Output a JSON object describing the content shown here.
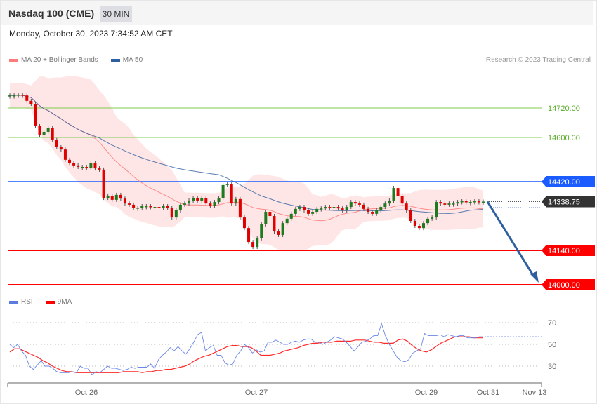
{
  "header": {
    "title": "Nasdaq 100 (CME)",
    "interval": "30 MIN"
  },
  "timestamp": "Monday, October 30, 2023 7:34:52 AM CET",
  "credit": "Research © 2023 Trading Central",
  "legend_main": [
    {
      "label": "MA 20 + Bollinger Bands",
      "color": "#ff7b7b"
    },
    {
      "label": "MA 50",
      "color": "#2f5f9e"
    }
  ],
  "legend_rsi": [
    {
      "label": "RSI",
      "color": "#5b7be0"
    },
    {
      "label": "9MA",
      "color": "#ff0000"
    }
  ],
  "chart_data": [
    {
      "type": "candlestick",
      "price_range": [
        14000,
        14800
      ],
      "levels": [
        {
          "value": 14720,
          "label": "14720.00",
          "color": "#7fcc4e",
          "style": "target"
        },
        {
          "value": 14600,
          "label": "14600.00",
          "color": "#7fcc4e",
          "style": "target"
        },
        {
          "value": 14420,
          "label": "14420.00",
          "color": "#1a5cff",
          "style": "pivot"
        },
        {
          "value": 14338.75,
          "label": "14338.75",
          "color": "#333333",
          "style": "last"
        },
        {
          "value": 14140,
          "label": "14140.00",
          "color": "#ff0000",
          "style": "support"
        },
        {
          "value": 14000,
          "label": "14000.00",
          "color": "#ff0000",
          "style": "support"
        }
      ],
      "forecast_arrow": {
        "from": 14338.75,
        "to": 14000,
        "color": "#2f5f9e"
      },
      "open_first": 14771,
      "closes": [
        14771,
        14771,
        14774,
        14771,
        14749,
        14737,
        14646,
        14611,
        14623,
        14640,
        14589,
        14560,
        14551,
        14509,
        14497,
        14486,
        14480,
        14480,
        14474,
        14497,
        14474,
        14469,
        14354,
        14360,
        14346,
        14366,
        14351,
        14331,
        14326,
        14314,
        14314,
        14320,
        14320,
        14317,
        14317,
        14314,
        14320,
        14314,
        14274,
        14303,
        14326,
        14331,
        14343,
        14354,
        14343,
        14354,
        14331,
        14320,
        14337,
        14354,
        14406,
        14411,
        14331,
        14349,
        14274,
        14231,
        14174,
        14154,
        14189,
        14246,
        14297,
        14280,
        14217,
        14203,
        14251,
        14269,
        14289,
        14309,
        14317,
        14303,
        14289,
        14297,
        14309,
        14311,
        14317,
        14314,
        14317,
        14311,
        14303,
        14317,
        14337,
        14331,
        14326,
        14309,
        14297,
        14289,
        14303,
        14317,
        14331,
        14343,
        14394,
        14360,
        14331,
        14303,
        14260,
        14240,
        14231,
        14251,
        14269,
        14274,
        14337,
        14331,
        14326,
        14331,
        14331,
        14337,
        14340,
        14337,
        14337,
        14340,
        14337,
        14338.75
      ],
      "x_ticks": [
        "Oct 26",
        "Oct 27",
        "Oct 29",
        "Oct 31",
        "Nov 13"
      ]
    },
    {
      "type": "line",
      "y_ticks": [
        70,
        50,
        30
      ],
      "series": [
        {
          "name": "RSI",
          "values": [
            50,
            47,
            50,
            44,
            40,
            30,
            27,
            31,
            35,
            30,
            30,
            28,
            25,
            24,
            24,
            24,
            25,
            24,
            30,
            28,
            28,
            22,
            25,
            24,
            27,
            30,
            28,
            28,
            27,
            26,
            27,
            29,
            28,
            29,
            29,
            29,
            32,
            28,
            36,
            40,
            43,
            47,
            44,
            48,
            44,
            41,
            46,
            52,
            59,
            61,
            44,
            47,
            49,
            40,
            40,
            33,
            31,
            32,
            40,
            44,
            50,
            47,
            42,
            45,
            43,
            44,
            52,
            52,
            54,
            52,
            50,
            50,
            52,
            53,
            52,
            54,
            55,
            55,
            52,
            52,
            50,
            52,
            54,
            57,
            56,
            55,
            52,
            48,
            44,
            48,
            52,
            53,
            55,
            58,
            58,
            69,
            58,
            50,
            44,
            38,
            35,
            34,
            36,
            42,
            44,
            46,
            60,
            58,
            58,
            58,
            59,
            57,
            59,
            58,
            57,
            58,
            58,
            56,
            56,
            56,
            57,
            57
          ]
        },
        {
          "name": "9MA",
          "values": [
            43,
            46,
            46,
            44,
            42,
            40,
            38,
            35,
            33,
            30,
            28,
            26,
            25,
            25,
            24,
            24,
            24,
            24,
            24,
            24,
            24,
            24,
            24,
            24,
            25,
            25,
            25,
            25,
            24,
            25,
            25,
            26,
            26,
            27,
            27,
            28,
            29,
            30,
            32,
            35,
            37,
            39,
            40,
            42,
            44,
            46,
            48,
            49,
            49,
            48,
            48,
            47,
            44,
            40,
            40,
            40,
            41,
            42,
            44,
            45,
            46,
            47,
            49,
            50,
            51,
            51,
            52,
            52,
            52,
            53,
            53,
            53,
            53,
            54,
            54,
            54,
            53,
            52,
            52,
            51,
            51,
            51,
            54,
            55,
            53,
            49,
            46,
            44,
            43,
            45,
            48,
            51,
            53,
            55,
            57,
            57,
            57,
            57,
            56,
            56,
            56
          ]
        }
      ]
    }
  ]
}
